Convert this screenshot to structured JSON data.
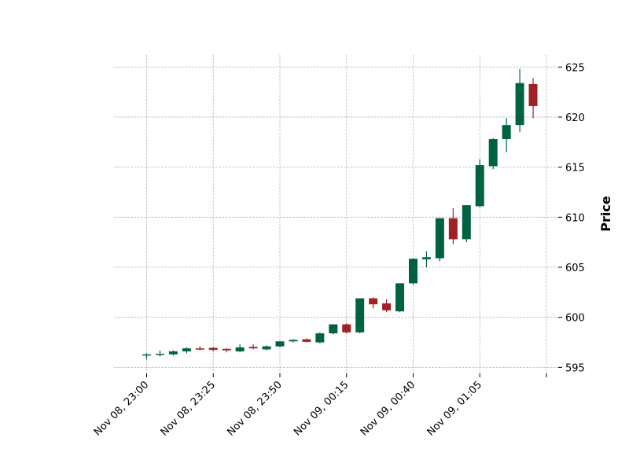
{
  "chart_data": {
    "type": "candlestick",
    "title": "",
    "xlabel": "",
    "ylabel": "Price",
    "ylim": [
      594.4,
      626.2
    ],
    "yticks": [
      595,
      600,
      605,
      610,
      615,
      620,
      625
    ],
    "grid": true,
    "xtick_labels": [
      {
        "index": 0,
        "label": "Nov 08, 23:00"
      },
      {
        "index": 5,
        "label": "Nov 08, 23:25"
      },
      {
        "index": 10,
        "label": "Nov 08, 23:50"
      },
      {
        "index": 15,
        "label": "Nov 09, 00:15"
      },
      {
        "index": 20,
        "label": "Nov 09, 00:40"
      },
      {
        "index": 25,
        "label": "Nov 09, 01:05"
      },
      {
        "index": 30,
        "label": ""
      }
    ],
    "colors": {
      "up": "#006340",
      "down": "#a02128"
    },
    "candles": [
      {
        "open": 596.2,
        "high": 596.4,
        "low": 595.8,
        "close": 596.3
      },
      {
        "open": 596.25,
        "high": 596.7,
        "low": 596.1,
        "close": 596.35
      },
      {
        "open": 596.3,
        "high": 596.7,
        "low": 596.2,
        "close": 596.6
      },
      {
        "open": 596.6,
        "high": 597.0,
        "low": 596.4,
        "close": 596.9
      },
      {
        "open": 596.9,
        "high": 597.1,
        "low": 596.7,
        "close": 596.8
      },
      {
        "open": 596.95,
        "high": 597.0,
        "low": 596.6,
        "close": 596.75
      },
      {
        "open": 596.85,
        "high": 596.9,
        "low": 596.5,
        "close": 596.7
      },
      {
        "open": 596.6,
        "high": 597.3,
        "low": 596.5,
        "close": 597.0
      },
      {
        "open": 597.05,
        "high": 597.3,
        "low": 596.8,
        "close": 596.9
      },
      {
        "open": 596.8,
        "high": 597.2,
        "low": 596.7,
        "close": 597.1
      },
      {
        "open": 597.1,
        "high": 597.6,
        "low": 597.0,
        "close": 597.6
      },
      {
        "open": 597.6,
        "high": 597.8,
        "low": 597.5,
        "close": 597.75
      },
      {
        "open": 597.8,
        "high": 597.9,
        "low": 597.5,
        "close": 597.55
      },
      {
        "open": 597.5,
        "high": 598.5,
        "low": 597.4,
        "close": 598.4
      },
      {
        "open": 598.4,
        "high": 599.3,
        "low": 598.3,
        "close": 599.3
      },
      {
        "open": 599.3,
        "high": 599.4,
        "low": 598.4,
        "close": 598.5
      },
      {
        "open": 598.5,
        "high": 601.9,
        "low": 598.4,
        "close": 601.9
      },
      {
        "open": 601.9,
        "high": 602.0,
        "low": 600.9,
        "close": 601.3
      },
      {
        "open": 601.4,
        "high": 601.8,
        "low": 600.5,
        "close": 600.7
      },
      {
        "open": 600.6,
        "high": 603.4,
        "low": 600.5,
        "close": 603.4
      },
      {
        "open": 603.4,
        "high": 605.9,
        "low": 603.3,
        "close": 605.85
      },
      {
        "open": 605.8,
        "high": 606.6,
        "low": 605.0,
        "close": 606.0
      },
      {
        "open": 605.9,
        "high": 609.9,
        "low": 605.6,
        "close": 609.9
      },
      {
        "open": 609.9,
        "high": 610.9,
        "low": 607.3,
        "close": 607.8
      },
      {
        "open": 607.8,
        "high": 611.2,
        "low": 607.5,
        "close": 611.2
      },
      {
        "open": 611.1,
        "high": 615.8,
        "low": 611.0,
        "close": 615.2
      },
      {
        "open": 615.1,
        "high": 617.9,
        "low": 614.8,
        "close": 617.8
      },
      {
        "open": 617.8,
        "high": 619.9,
        "low": 616.5,
        "close": 619.2
      },
      {
        "open": 619.2,
        "high": 624.8,
        "low": 618.5,
        "close": 623.4
      },
      {
        "open": 623.3,
        "high": 623.9,
        "low": 619.9,
        "close": 621.1
      }
    ]
  }
}
